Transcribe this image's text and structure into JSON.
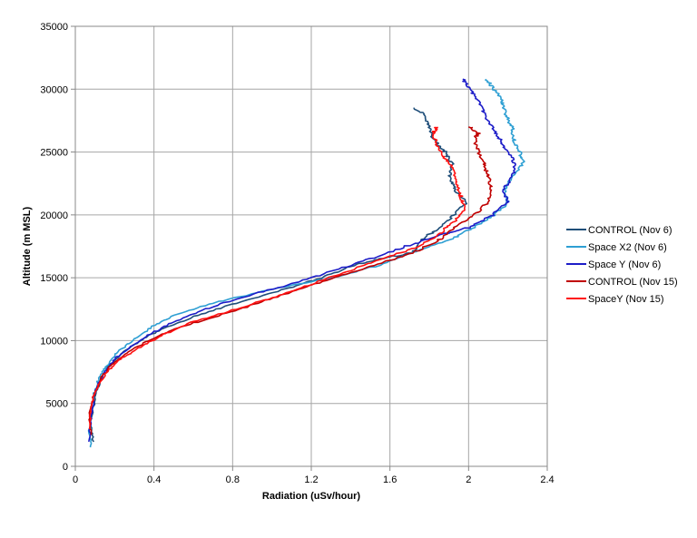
{
  "chart_data": {
    "type": "line",
    "xlabel": "Radiation (uSv/hour)",
    "ylabel": "Altitude (m MSL)",
    "xlim": [
      0,
      2.4
    ],
    "ylim": [
      0,
      35000
    ],
    "x_ticks": [
      0,
      0.4,
      0.8,
      1.2,
      1.6,
      2,
      2.4
    ],
    "x_tick_labels": [
      "0",
      "0.4",
      "0.8",
      "1.2",
      "1.6",
      "2",
      "2.4"
    ],
    "y_ticks": [
      0,
      5000,
      10000,
      15000,
      20000,
      25000,
      30000,
      35000
    ],
    "y_tick_labels": [
      "0",
      "5000",
      "10000",
      "15000",
      "20000",
      "25000",
      "30000",
      "35000"
    ],
    "grid": true,
    "legend_position": "right",
    "series": [
      {
        "name": "CONTROL (Nov 6)",
        "color": "#1f4e79",
        "points": [
          [
            0.09,
            2000
          ],
          [
            0.08,
            3500
          ],
          [
            0.1,
            5500
          ],
          [
            0.13,
            7000
          ],
          [
            0.17,
            8000
          ],
          [
            0.24,
            9000
          ],
          [
            0.33,
            10000
          ],
          [
            0.45,
            11000
          ],
          [
            0.62,
            12000
          ],
          [
            0.82,
            13000
          ],
          [
            1.05,
            14000
          ],
          [
            1.25,
            15000
          ],
          [
            1.42,
            16000
          ],
          [
            1.55,
            16500
          ],
          [
            1.72,
            17000
          ],
          [
            1.76,
            18000
          ],
          [
            1.85,
            19000
          ],
          [
            1.93,
            20000
          ],
          [
            1.99,
            21000
          ],
          [
            1.93,
            22000
          ],
          [
            1.9,
            23000
          ],
          [
            1.92,
            24000
          ],
          [
            1.88,
            25000
          ],
          [
            1.82,
            26000
          ],
          [
            1.8,
            27000
          ],
          [
            1.77,
            28000
          ],
          [
            1.72,
            28500
          ]
        ]
      },
      {
        "name": "Space X2 (Nov 6)",
        "color": "#2e9fd3",
        "points": [
          [
            0.08,
            1500
          ],
          [
            0.07,
            3000
          ],
          [
            0.09,
            5500
          ],
          [
            0.12,
            7000
          ],
          [
            0.16,
            8000
          ],
          [
            0.21,
            9000
          ],
          [
            0.29,
            10000
          ],
          [
            0.38,
            11000
          ],
          [
            0.5,
            12000
          ],
          [
            0.7,
            13000
          ],
          [
            0.98,
            14000
          ],
          [
            1.3,
            15000
          ],
          [
            1.55,
            16000
          ],
          [
            1.72,
            17000
          ],
          [
            1.9,
            18000
          ],
          [
            2.03,
            19000
          ],
          [
            2.13,
            20000
          ],
          [
            2.2,
            21000
          ],
          [
            2.18,
            22000
          ],
          [
            2.22,
            23000
          ],
          [
            2.28,
            24200
          ],
          [
            2.26,
            25000
          ],
          [
            2.23,
            26000
          ],
          [
            2.22,
            27000
          ],
          [
            2.19,
            28000
          ],
          [
            2.17,
            29000
          ],
          [
            2.13,
            30000
          ],
          [
            2.09,
            30800
          ]
        ]
      },
      {
        "name": "Space Y (Nov 6)",
        "color": "#1c1cc8",
        "points": [
          [
            0.07,
            2000
          ],
          [
            0.08,
            4000
          ],
          [
            0.1,
            6000
          ],
          [
            0.15,
            7500
          ],
          [
            0.2,
            8500
          ],
          [
            0.28,
            9500
          ],
          [
            0.38,
            10500
          ],
          [
            0.5,
            11500
          ],
          [
            0.66,
            12500
          ],
          [
            0.86,
            13500
          ],
          [
            1.1,
            14500
          ],
          [
            1.3,
            15500
          ],
          [
            1.5,
            16500
          ],
          [
            1.68,
            17500
          ],
          [
            1.88,
            18500
          ],
          [
            2.0,
            19000
          ],
          [
            2.12,
            20000
          ],
          [
            2.2,
            21000
          ],
          [
            2.18,
            22000
          ],
          [
            2.22,
            23000
          ],
          [
            2.24,
            24000
          ],
          [
            2.2,
            25000
          ],
          [
            2.16,
            26000
          ],
          [
            2.12,
            27000
          ],
          [
            2.08,
            28000
          ],
          [
            2.05,
            29000
          ],
          [
            2.01,
            30000
          ],
          [
            1.97,
            30800
          ]
        ]
      },
      {
        "name": "CONTROL (Nov 15)",
        "color": "#c00000",
        "points": [
          [
            0.08,
            2500
          ],
          [
            0.07,
            4000
          ],
          [
            0.09,
            5500
          ],
          [
            0.13,
            7000
          ],
          [
            0.18,
            8000
          ],
          [
            0.26,
            9000
          ],
          [
            0.37,
            10000
          ],
          [
            0.52,
            11000
          ],
          [
            0.73,
            12000
          ],
          [
            0.93,
            13000
          ],
          [
            1.12,
            14000
          ],
          [
            1.32,
            15000
          ],
          [
            1.52,
            16000
          ],
          [
            1.72,
            17000
          ],
          [
            1.85,
            18000
          ],
          [
            1.93,
            19000
          ],
          [
            2.03,
            20000
          ],
          [
            2.1,
            21000
          ],
          [
            2.12,
            22000
          ],
          [
            2.1,
            23000
          ],
          [
            2.08,
            24000
          ],
          [
            2.05,
            25000
          ],
          [
            2.03,
            26000
          ],
          [
            2.05,
            26500
          ],
          [
            2.0,
            27000
          ]
        ]
      },
      {
        "name": "SpaceY (Nov 15)",
        "color": "#ff1010",
        "points": [
          [
            0.07,
            3000
          ],
          [
            0.08,
            4500
          ],
          [
            0.1,
            6000
          ],
          [
            0.16,
            7500
          ],
          [
            0.23,
            8500
          ],
          [
            0.33,
            9500
          ],
          [
            0.45,
            10500
          ],
          [
            0.6,
            11500
          ],
          [
            0.82,
            12500
          ],
          [
            1.02,
            13500
          ],
          [
            1.2,
            14500
          ],
          [
            1.38,
            15500
          ],
          [
            1.56,
            16500
          ],
          [
            1.75,
            17500
          ],
          [
            1.85,
            18500
          ],
          [
            1.93,
            19500
          ],
          [
            1.98,
            20500
          ],
          [
            1.96,
            21500
          ],
          [
            1.94,
            22500
          ],
          [
            1.93,
            23500
          ],
          [
            1.88,
            24500
          ],
          [
            1.84,
            25500
          ],
          [
            1.82,
            26500
          ],
          [
            1.84,
            27000
          ]
        ]
      }
    ]
  }
}
